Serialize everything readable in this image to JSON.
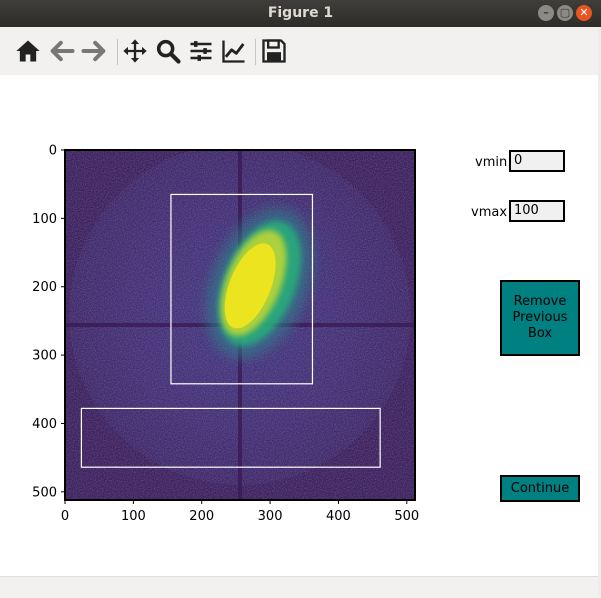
{
  "window": {
    "title": "Figure 1",
    "controls": {
      "minimize": "–",
      "maximize": "▢",
      "close": "✕"
    }
  },
  "toolbar": {
    "tools": [
      "home-icon",
      "back-arrow-icon",
      "forward-arrow-icon",
      "pan-icon",
      "zoom-icon",
      "subplots-icon",
      "axes-edit-icon",
      "save-icon"
    ]
  },
  "controls": {
    "vmin_label": "vmin",
    "vmin_value": "0",
    "vmax_label": "vmax",
    "vmax_value": "100",
    "remove_button": "Remove Previous Box",
    "continue_button": "Continue",
    "button_color": "#008080"
  },
  "chart_data": {
    "type": "heatmap",
    "colormap": "viridis",
    "xlim": [
      0,
      512
    ],
    "ylim": [
      512,
      0
    ],
    "x_ticks": [
      "0",
      "100",
      "200",
      "300",
      "400",
      "500"
    ],
    "y_ticks": [
      "0",
      "100",
      "200",
      "300",
      "400",
      "500"
    ],
    "x_tick_values": [
      0,
      100,
      200,
      300,
      400,
      500
    ],
    "y_tick_values": [
      0,
      100,
      200,
      300,
      400,
      500
    ],
    "boxes": [
      {
        "x0": 155,
        "y0": 65,
        "x1": 362,
        "y1": 342
      },
      {
        "x0": 24,
        "y0": 378,
        "x1": 461,
        "y1": 464
      }
    ],
    "beam_center": {
      "x": 256,
      "y": 256
    },
    "blob_center": {
      "x": 285,
      "y": 195
    },
    "grid": false
  }
}
